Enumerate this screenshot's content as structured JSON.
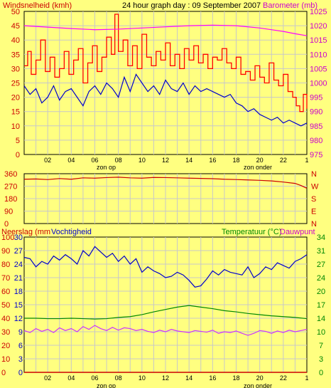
{
  "chart_data": [
    {
      "type": "line",
      "title": "24 hour graph day : 09 September 2007",
      "ylabel_left": "Windsnelheid (kmh)",
      "ylabel_right": "Barometer (mb)",
      "ylim_left": [
        0,
        50
      ],
      "ylim_right": [
        975,
        1025
      ],
      "yticks_left": [
        "0",
        "5",
        "10",
        "15",
        "20",
        "25",
        "30",
        "35",
        "40",
        "45",
        "50"
      ],
      "yticks_right": [
        "975",
        "980",
        "985",
        "990",
        "995",
        "1000",
        "1005",
        "1010",
        "1015",
        "1020",
        "1025"
      ],
      "xlim": [
        0,
        24
      ],
      "xtick_labels": [
        "02",
        "04",
        "06",
        "08",
        "10",
        "12",
        "14",
        "16",
        "18",
        "20",
        "22",
        "1"
      ],
      "annotations": [
        "zon op",
        "zon onder"
      ],
      "grid": true,
      "series": [
        {
          "axis": "left",
          "color": "#ff0000",
          "x": [
            0,
            0.3,
            0.6,
            1,
            1.4,
            1.8,
            2.2,
            2.6,
            3,
            3.4,
            3.8,
            4.2,
            4.6,
            5,
            5.4,
            5.8,
            6.2,
            6.6,
            7,
            7.4,
            7.7,
            8,
            8.4,
            8.8,
            9.2,
            9.6,
            10,
            10.4,
            10.8,
            11.2,
            11.6,
            12,
            12.4,
            12.8,
            13.2,
            13.6,
            14,
            14.4,
            14.8,
            15.2,
            15.6,
            16,
            16.4,
            16.8,
            17.2,
            17.6,
            18,
            18.4,
            18.8,
            19.2,
            19.6,
            20,
            20.4,
            20.8,
            21.2,
            21.6,
            22,
            22.4,
            22.8,
            23.1,
            23.4,
            23.7,
            24
          ],
          "values": [
            31,
            36,
            28,
            33,
            40,
            29,
            34,
            27,
            30,
            36,
            28,
            33,
            37,
            25,
            32,
            38,
            29,
            34,
            41,
            35,
            49,
            36,
            40,
            31,
            38,
            30,
            42,
            34,
            31,
            36,
            33,
            39,
            31,
            35,
            30,
            37,
            33,
            38,
            32,
            35,
            30,
            34,
            33,
            37,
            32,
            30,
            34,
            28,
            29,
            26,
            31,
            27,
            25,
            32,
            26,
            24,
            28,
            22,
            20,
            17,
            15,
            21,
            16
          ]
        },
        {
          "axis": "left",
          "color": "#0000cc",
          "x": [
            0,
            0.5,
            1,
            1.5,
            2,
            2.5,
            3,
            3.5,
            4,
            4.5,
            5,
            5.5,
            6,
            6.5,
            7,
            7.5,
            8,
            8.5,
            9,
            9.5,
            10,
            10.5,
            11,
            11.5,
            12,
            12.5,
            13,
            13.5,
            14,
            14.5,
            15,
            15.5,
            16,
            16.5,
            17,
            17.5,
            18,
            18.5,
            19,
            19.5,
            20,
            20.5,
            21,
            21.5,
            22,
            22.5,
            23,
            23.5,
            24
          ],
          "values": [
            24,
            21,
            23,
            18,
            20,
            24,
            19,
            22,
            23,
            20,
            17,
            22,
            24,
            21,
            25,
            23,
            20,
            27,
            22,
            28,
            25,
            22,
            24,
            21,
            26,
            23,
            22,
            25,
            21,
            24,
            22,
            23,
            22,
            21,
            20,
            21,
            18,
            17,
            15,
            16,
            14,
            13,
            12,
            13,
            11,
            12,
            11,
            10,
            11
          ]
        },
        {
          "axis": "right",
          "color": "#ff00ff",
          "x": [
            0,
            2,
            4,
            6,
            8,
            10,
            12,
            14,
            16,
            18,
            20,
            22,
            23,
            24
          ],
          "values": [
            1020,
            1019.5,
            1019,
            1018.6,
            1018.8,
            1019.2,
            1019.6,
            1020,
            1020.2,
            1020,
            1019.2,
            1018,
            1017.2,
            1016.5
          ]
        }
      ]
    },
    {
      "type": "line",
      "yticks_left": [
        "360",
        "270",
        "180",
        "90",
        "0"
      ],
      "ylim": [
        0,
        360
      ],
      "yticks_right": [
        "N",
        "W",
        "S",
        "E",
        "N"
      ],
      "xlim": [
        0,
        24
      ],
      "xtick_labels": [
        "02",
        "04",
        "06",
        "08",
        "10",
        "12",
        "14",
        "16",
        "18",
        "20",
        "22",
        "1"
      ],
      "annotations": [
        "zon op",
        "zon onder"
      ],
      "series": [
        {
          "color": "#cc0000",
          "x": [
            0,
            1,
            2,
            3,
            4,
            5,
            6,
            7,
            8,
            9,
            10,
            11,
            12,
            13,
            14,
            15,
            16,
            17,
            18,
            19,
            20,
            21,
            22,
            23,
            23.5,
            24
          ],
          "values": [
            320,
            322,
            318,
            325,
            320,
            330,
            328,
            332,
            335,
            330,
            328,
            333,
            332,
            330,
            328,
            326,
            324,
            320,
            318,
            315,
            312,
            308,
            300,
            290,
            275,
            255
          ]
        }
      ]
    },
    {
      "type": "line",
      "ylabel_left": "Neerslag (mm",
      "ylabel_left2": "Vochtigheid",
      "ylabel_right": "Temperatuur (°C)",
      "ylabel_right2": "Dauwpunt",
      "yticks_rain": [
        "0",
        "3",
        "6",
        "9",
        "12",
        "15",
        "18",
        "21",
        "24",
        "27",
        "30"
      ],
      "yticks_humidity": [
        "0",
        "10",
        "20",
        "30",
        "40",
        "50",
        "60",
        "70",
        "80",
        "90",
        "100"
      ],
      "yticks_temp": [
        "0",
        "3",
        "7",
        "10",
        "14",
        "17",
        "20",
        "24",
        "27",
        "31",
        "34"
      ],
      "ylim_rain": [
        0,
        30
      ],
      "ylim_humidity": [
        0,
        100
      ],
      "ylim_temp": [
        0,
        34
      ],
      "xlim": [
        0,
        24
      ],
      "xtick_labels": [
        "02",
        "04",
        "06",
        "08",
        "10",
        "12",
        "14",
        "16",
        "18",
        "20",
        "22",
        "1"
      ],
      "annotations": [
        "zon op",
        "zon onder"
      ],
      "series": [
        {
          "axis": "humidity",
          "color": "#0000cc",
          "x": [
            0,
            0.5,
            1,
            1.5,
            2,
            2.5,
            3,
            3.5,
            4,
            4.5,
            5,
            5.5,
            6,
            6.5,
            7,
            7.5,
            8,
            8.5,
            9,
            9.5,
            10,
            10.5,
            11,
            11.5,
            12,
            12.5,
            13,
            13.5,
            14,
            14.5,
            15,
            15.5,
            16,
            16.5,
            17,
            17.5,
            18,
            18.5,
            19,
            19.5,
            20,
            20.5,
            21,
            21.5,
            22,
            22.5,
            23,
            23.5,
            24
          ],
          "values": [
            85,
            84,
            78,
            82,
            80,
            86,
            83,
            87,
            84,
            80,
            90,
            86,
            93,
            89,
            85,
            88,
            82,
            86,
            80,
            84,
            74,
            78,
            75,
            73,
            70,
            71,
            74,
            72,
            68,
            63,
            64,
            69,
            75,
            72,
            76,
            74,
            73,
            72,
            78,
            70,
            73,
            78,
            76,
            81,
            79,
            77,
            82,
            84,
            87
          ]
        },
        {
          "axis": "temp",
          "color": "#008800",
          "x": [
            0,
            1,
            2,
            3,
            4,
            5,
            6,
            7,
            8,
            9,
            10,
            11,
            12,
            13,
            14,
            15,
            16,
            17,
            18,
            19,
            20,
            21,
            22,
            23,
            24
          ],
          "values": [
            13.6,
            13.6,
            13.5,
            13.5,
            13.6,
            13.5,
            13.4,
            13.5,
            13.8,
            14,
            14.5,
            15.2,
            15.8,
            16.4,
            16.8,
            16.4,
            16,
            15.5,
            15.2,
            14.8,
            14.5,
            14.2,
            14,
            13.8,
            13.5
          ]
        },
        {
          "axis": "temp",
          "color": "#cc33ff",
          "x": [
            0,
            0.5,
            1,
            1.5,
            2,
            2.5,
            3,
            3.5,
            4,
            4.5,
            5,
            5.5,
            6,
            6.5,
            7,
            7.5,
            8,
            8.5,
            9,
            9.5,
            10,
            10.5,
            11,
            11.5,
            12,
            12.5,
            13,
            13.5,
            14,
            14.5,
            15,
            15.5,
            16,
            16.5,
            17,
            17.5,
            18,
            18.5,
            19,
            19.5,
            20,
            20.5,
            21,
            21.5,
            22,
            22.5,
            23,
            23.5,
            24
          ],
          "values": [
            10.5,
            10,
            11,
            10.3,
            10.8,
            10,
            11.2,
            10.5,
            11,
            10.2,
            11.5,
            10.8,
            11.8,
            11,
            10.5,
            11.3,
            10.6,
            11.2,
            11,
            10.5,
            10.8,
            10.3,
            10,
            10.6,
            10.2,
            10.8,
            10.4,
            10.2,
            10,
            10.5,
            10.3,
            10.1,
            10.6,
            9.8,
            10.2,
            10,
            10.4,
            9.8,
            9.3,
            9.8,
            10.5,
            10.3,
            9.8,
            10.4,
            10,
            10.6,
            10.2,
            10.5,
            10.8
          ]
        },
        {
          "axis": "rain",
          "color": "#cc0000",
          "x": [
            0,
            24
          ],
          "values": [
            0,
            0
          ]
        }
      ]
    }
  ]
}
